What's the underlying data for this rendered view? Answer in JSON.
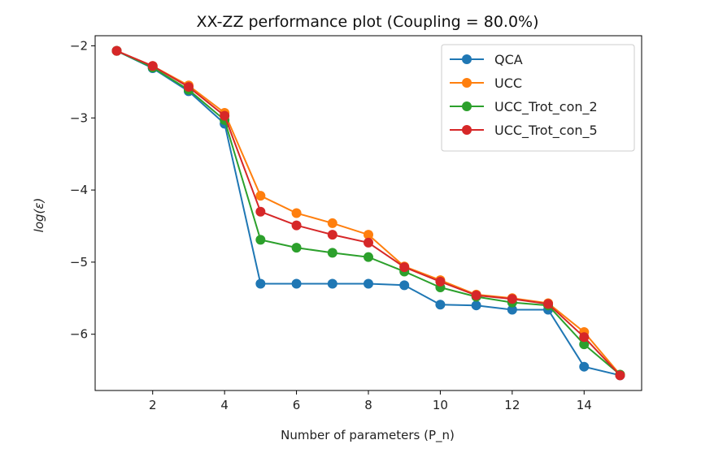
{
  "chart_data": {
    "type": "line",
    "title": "XX-ZZ performance plot (Coupling = 80.0%)",
    "xlabel": "Number of parameters (P_n)",
    "ylabel": "log(ε)",
    "xlim": [
      0.4,
      15.6
    ],
    "ylim": [
      -6.78,
      -1.86
    ],
    "xticks": [
      2,
      4,
      6,
      8,
      10,
      12,
      14
    ],
    "yticks": [
      -2,
      -3,
      -4,
      -5,
      -6
    ],
    "ytick_labels": [
      "−2",
      "−3",
      "−4",
      "−5",
      "−6"
    ],
    "grid": false,
    "legend_position": "top-right",
    "x": [
      1,
      2,
      3,
      4,
      5,
      6,
      7,
      8,
      9,
      10,
      11,
      12,
      13,
      14,
      15
    ],
    "series": [
      {
        "name": "QCA",
        "color": "#1f77b4",
        "values": [
          -2.07,
          -2.31,
          -2.63,
          -3.08,
          -5.3,
          -5.3,
          -5.3,
          -5.3,
          -5.32,
          -5.59,
          -5.6,
          -5.66,
          -5.66,
          -6.45,
          -6.57
        ]
      },
      {
        "name": "UCC",
        "color": "#ff7f0e",
        "values": [
          -2.07,
          -2.28,
          -2.55,
          -2.93,
          -4.08,
          -4.32,
          -4.46,
          -4.62,
          -5.06,
          -5.25,
          -5.45,
          -5.5,
          -5.57,
          -5.97,
          -6.56
        ]
      },
      {
        "name": "UCC_Trot_con_2",
        "color": "#2ca02c",
        "values": [
          -2.07,
          -2.3,
          -2.61,
          -3.03,
          -4.69,
          -4.8,
          -4.87,
          -4.93,
          -5.13,
          -5.35,
          -5.48,
          -5.56,
          -5.6,
          -6.14,
          -6.56
        ]
      },
      {
        "name": "UCC_Trot_con_5",
        "color": "#d62728",
        "values": [
          -2.07,
          -2.28,
          -2.57,
          -2.97,
          -4.3,
          -4.49,
          -4.62,
          -4.73,
          -5.07,
          -5.27,
          -5.46,
          -5.51,
          -5.58,
          -6.04,
          -6.57
        ]
      }
    ]
  }
}
